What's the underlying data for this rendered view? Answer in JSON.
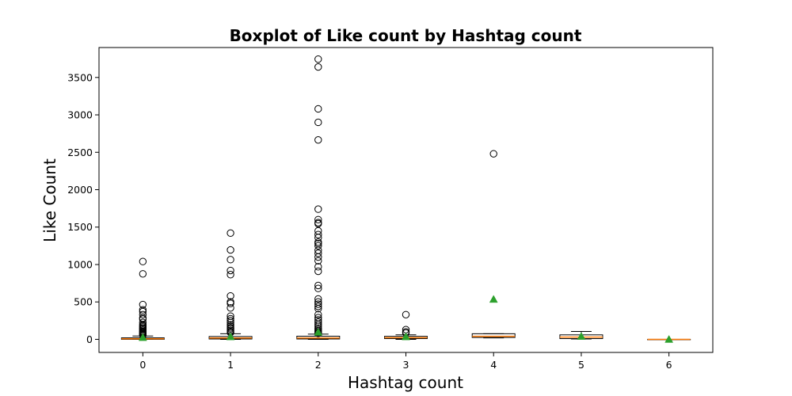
{
  "chart_data": {
    "type": "box",
    "title": "Boxplot of Like count by Hashtag count",
    "xlabel": "Hashtag count",
    "ylabel": "Like Count",
    "categories": [
      "0",
      "1",
      "2",
      "3",
      "4",
      "5",
      "6"
    ],
    "ylim": [
      -175,
      3900
    ],
    "yticks": [
      0,
      500,
      1000,
      1500,
      2000,
      2500,
      3000,
      3500
    ],
    "grid": false,
    "colors": {
      "median": "#ff7f0e",
      "mean_marker": "#2ca02c",
      "box": "#000000",
      "flier": "#000000"
    },
    "boxes": [
      {
        "category": "0",
        "whisker_low": 0,
        "q1": 0,
        "median": 7,
        "q3": 20,
        "whisker_high": 45,
        "mean": 25,
        "fliers": [
          1040,
          875,
          465,
          395,
          370,
          330,
          285,
          270,
          225,
          195,
          180,
          165,
          150,
          140,
          125,
          110,
          100,
          90,
          80,
          70,
          60,
          55
        ]
      },
      {
        "category": "1",
        "whisker_low": 0,
        "q1": 5,
        "median": 18,
        "q3": 38,
        "whisker_high": 75,
        "mean": 35,
        "fliers": [
          1420,
          1195,
          1065,
          920,
          865,
          580,
          500,
          480,
          420,
          310,
          275,
          250,
          225,
          195,
          175,
          155,
          140,
          120,
          100,
          90
        ]
      },
      {
        "category": "2",
        "whisker_low": 0,
        "q1": 5,
        "median": 18,
        "q3": 42,
        "whisker_high": 70,
        "mean": 95,
        "fliers": [
          3745,
          3640,
          3080,
          2900,
          2665,
          1740,
          1600,
          1560,
          1545,
          1450,
          1400,
          1360,
          1300,
          1280,
          1250,
          1190,
          1150,
          1100,
          1050,
          970,
          910,
          720,
          680,
          540,
          500,
          470,
          440,
          410,
          330,
          290,
          260,
          230,
          200,
          175,
          150,
          130,
          110,
          95,
          80
        ]
      },
      {
        "category": "3",
        "whisker_low": 0,
        "q1": 10,
        "median": 22,
        "q3": 40,
        "whisker_high": 60,
        "mean": 35,
        "fliers": [
          330,
          130,
          100,
          85
        ]
      },
      {
        "category": "4",
        "whisker_low": 20,
        "q1": 25,
        "median": 40,
        "q3": 75,
        "whisker_high": 75,
        "mean": 535,
        "fliers": [
          2480
        ]
      },
      {
        "category": "5",
        "whisker_low": 5,
        "q1": 10,
        "median": 30,
        "q3": 60,
        "whisker_high": 105,
        "mean": 40,
        "fliers": []
      },
      {
        "category": "6",
        "whisker_low": 0,
        "q1": 0,
        "median": 0,
        "q3": 0,
        "whisker_high": 0,
        "mean": 0,
        "fliers": []
      }
    ]
  }
}
